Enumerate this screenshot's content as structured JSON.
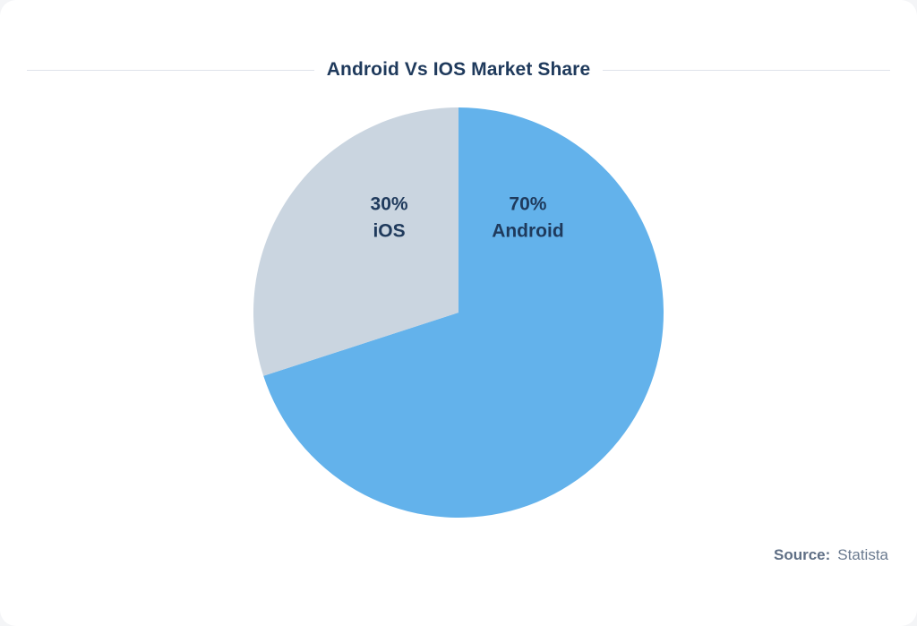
{
  "chart_data": {
    "type": "pie",
    "title": "Android Vs IOS Market Share",
    "slices": [
      {
        "label": "Android",
        "value": 70,
        "value_label": "70%",
        "color": "#63b2eb"
      },
      {
        "label": "iOS",
        "value": 30,
        "value_label": "30%",
        "color": "#cad5e0"
      }
    ],
    "legend": "none",
    "start_angle": "12 o'clock"
  },
  "source": {
    "label": "Source:",
    "value": "Statista"
  }
}
